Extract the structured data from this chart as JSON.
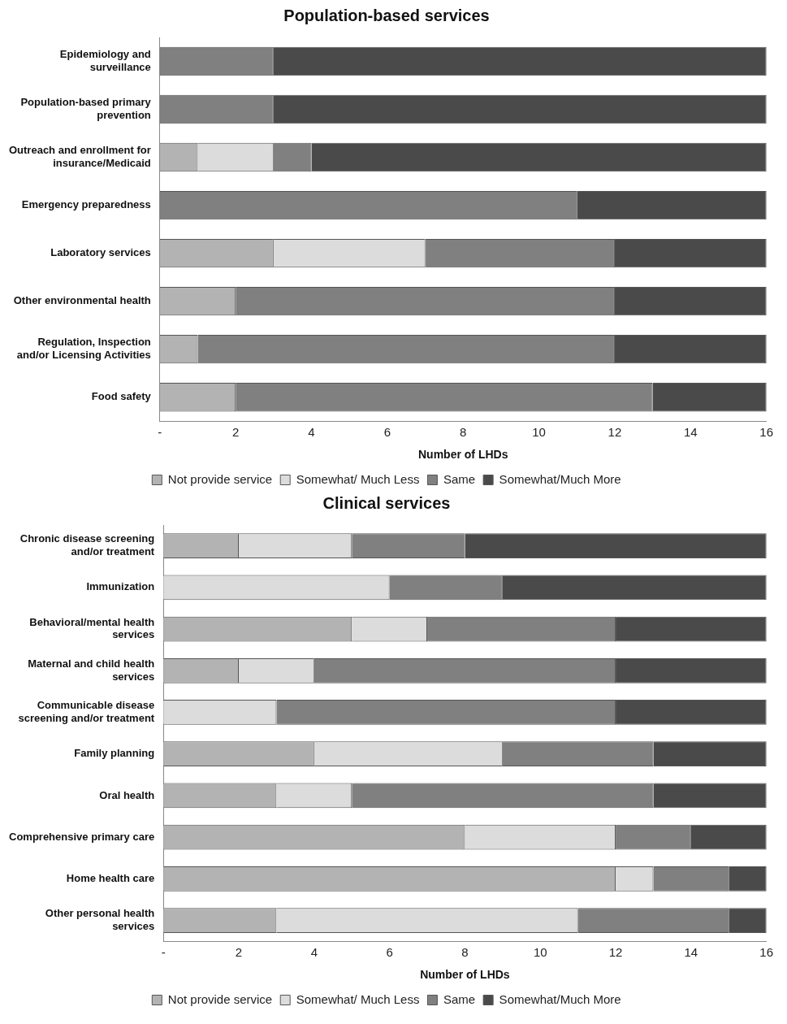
{
  "chart_data": [
    {
      "type": "bar",
      "title": "Population-based services",
      "xlabel": "Number of LHDs",
      "orientation": "horizontal",
      "stacked": true,
      "legend": "bottom",
      "grid": false,
      "categories": [
        "Epidemiology and surveillance",
        "Population-based primary prevention",
        "Outreach and enrollment for insurance/Medicaid",
        "Emergency preparedness",
        "Laboratory services",
        "Other environmental health",
        "Regulation, Inspection and/or Licensing Activities",
        "Food safety"
      ],
      "xlim": [
        0,
        16
      ],
      "xticks": [
        {
          "value": 0,
          "label": "-"
        },
        2,
        4,
        6,
        8,
        10,
        12,
        14,
        16
      ],
      "series": [
        {
          "name": "Not provide service",
          "color": "#b3b3b3",
          "values": [
            0,
            0,
            1,
            0,
            3,
            2,
            1,
            2
          ]
        },
        {
          "name": "Somewhat/ Much Less",
          "color": "#dcdcdc",
          "values": [
            0,
            0,
            2,
            0,
            4,
            0,
            0,
            0
          ]
        },
        {
          "name": "Same",
          "color": "#808080",
          "values": [
            3,
            3,
            1,
            11,
            5,
            10,
            11,
            11
          ]
        },
        {
          "name": "Somewhat/Much More",
          "color": "#4a4a4a",
          "values": [
            13,
            13,
            12,
            5,
            4,
            4,
            4,
            3
          ]
        }
      ]
    },
    {
      "type": "bar",
      "title": "Clinical services",
      "xlabel": "Number of LHDs",
      "orientation": "horizontal",
      "stacked": true,
      "legend": "bottom",
      "grid": false,
      "categories": [
        "Chronic disease screening and/or treatment",
        "Immunization",
        "Behavioral/mental health services",
        "Maternal and child health services",
        "Communicable disease screening and/or treatment",
        "Family planning",
        "Oral health",
        "Comprehensive primary care",
        "Home health care",
        "Other personal health services"
      ],
      "xlim": [
        0,
        16
      ],
      "xticks": [
        {
          "value": 0,
          "label": "-"
        },
        2,
        4,
        6,
        8,
        10,
        12,
        14,
        16
      ],
      "series": [
        {
          "name": "Not provide service",
          "color": "#b3b3b3",
          "values": [
            2,
            0,
            5,
            2,
            0,
            4,
            3,
            8,
            12,
            3
          ]
        },
        {
          "name": "Somewhat/ Much Less",
          "color": "#dcdcdc",
          "values": [
            3,
            6,
            2,
            2,
            3,
            5,
            2,
            4,
            1,
            8
          ]
        },
        {
          "name": "Same",
          "color": "#808080",
          "values": [
            3,
            3,
            5,
            8,
            9,
            4,
            8,
            2,
            2,
            4
          ]
        },
        {
          "name": "Somewhat/Much More",
          "color": "#4a4a4a",
          "values": [
            8,
            7,
            4,
            4,
            4,
            3,
            3,
            2,
            1,
            1
          ]
        }
      ]
    }
  ]
}
